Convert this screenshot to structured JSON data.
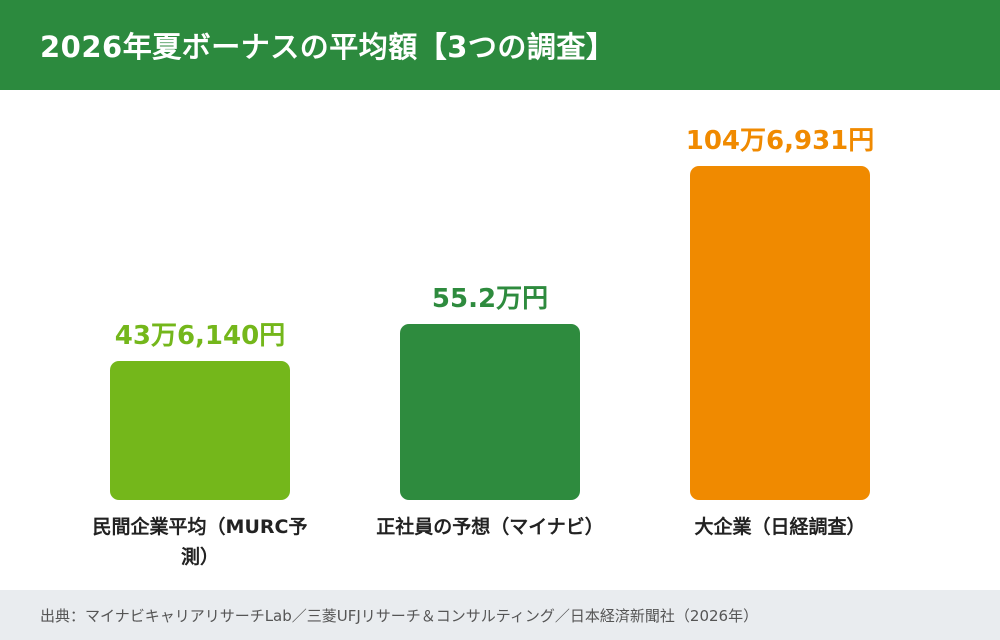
{
  "header": {
    "title": "2026年夏ボーナスの平均額【3つの調査】"
  },
  "chart_data": {
    "type": "bar",
    "categories": [
      "民間企業平均（MURC予測）",
      "正社員の予想（マイナビ）",
      "大企業（日経調査）"
    ],
    "values": [
      436140,
      552000,
      1046931
    ],
    "value_labels": [
      "43万6,140円",
      "55.2万円",
      "104万6,931円"
    ],
    "colors": [
      "#74b71b",
      "#2e8b3e",
      "#f08a00"
    ],
    "ylim": [
      0,
      1046931
    ],
    "unit": "円",
    "grid": false,
    "legend": "none"
  },
  "footer": {
    "source": "出典：マイナビキャリアリサーチLab／三菱UFJリサーチ＆コンサルティング／日本経済新聞社（2026年）"
  }
}
